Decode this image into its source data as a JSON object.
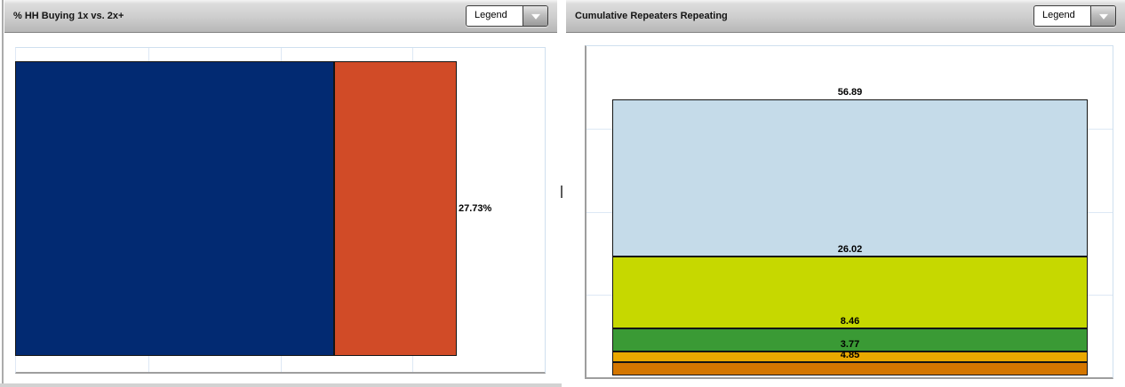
{
  "panels": {
    "left": {
      "title": "% HH Buying 1x vs. 2x+",
      "legend_button": "Legend"
    },
    "right": {
      "title": "Cumulative Repeaters Repeating",
      "legend_button": "Legend"
    }
  },
  "chart_data": [
    {
      "panel": "left",
      "type": "bar",
      "orientation": "horizontal",
      "stacked": true,
      "title": "% HH Buying 1x vs. 2x+",
      "series": [
        {
          "value": 72.27,
          "label": "72.27%",
          "color": "#022a72"
        },
        {
          "value": 27.73,
          "label": "27.73%",
          "color": "#d14b27"
        }
      ],
      "value_total": 100,
      "gridlines": "vertical-quarters",
      "data_labels": "right-of-segment-end",
      "axis_tick_labels_visible": false
    },
    {
      "panel": "right",
      "type": "bar",
      "orientation": "vertical",
      "stacked": true,
      "title": "Cumulative Repeaters Repeating",
      "series_order": "top-to-bottom",
      "series": [
        {
          "value": 56.89,
          "label": "56.89",
          "color": "#c5dbe9"
        },
        {
          "value": 26.02,
          "label": "26.02",
          "color": "#c6d800"
        },
        {
          "value": 8.46,
          "label": "8.46",
          "color": "#3a9a35"
        },
        {
          "value": 3.77,
          "label": "3.77",
          "color": "#eaa800"
        },
        {
          "value": 4.85,
          "label": "4.85",
          "color": "#d47600"
        }
      ],
      "value_total": 99.99,
      "gridlines": "horizontal-quarters",
      "data_labels": "above-segment-top",
      "axis_tick_labels_visible": false
    }
  ]
}
